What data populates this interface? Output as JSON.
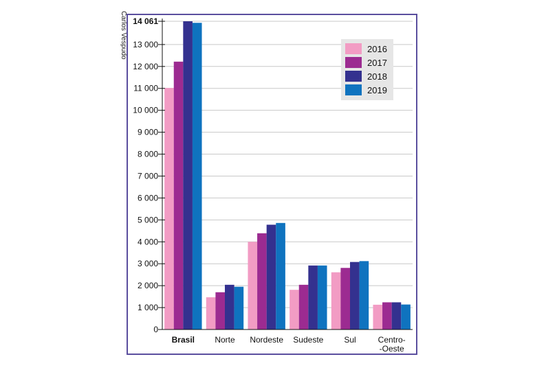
{
  "credit": "Carlos Vespudo",
  "chart_data": {
    "type": "bar",
    "title": "",
    "xlabel": "",
    "ylabel": "",
    "categories": [
      "Brasil",
      "Norte",
      "Nordeste",
      "Sudeste",
      "Sul",
      "Centro-Oeste"
    ],
    "category_lines": [
      [
        "Brasil"
      ],
      [
        "Norte"
      ],
      [
        "Nordeste"
      ],
      [
        "Sudeste"
      ],
      [
        "Sul"
      ],
      [
        "Centro-",
        "-Oeste"
      ]
    ],
    "bold_categories": [
      "Brasil"
    ],
    "series": [
      {
        "name": "2016",
        "color": "#f29cc4",
        "values": [
          11020,
          1470,
          4000,
          1810,
          2610,
          1130
        ]
      },
      {
        "name": "2017",
        "color": "#9c2b91",
        "values": [
          12220,
          1700,
          4390,
          2040,
          2810,
          1240
        ]
      },
      {
        "name": "2018",
        "color": "#34318f",
        "values": [
          14061,
          2040,
          4780,
          2920,
          3080,
          1240
        ]
      },
      {
        "name": "2019",
        "color": "#0f73bf",
        "values": [
          13990,
          1950,
          4860,
          2920,
          3120,
          1140
        ]
      }
    ],
    "ylim": [
      0,
      14061
    ],
    "yticks": [
      0,
      1000,
      2000,
      3000,
      4000,
      5000,
      6000,
      7000,
      8000,
      9000,
      10000,
      11000,
      12000,
      13000,
      14061
    ],
    "ytick_labels": [
      "0",
      "1 000",
      "2 000",
      "3 000",
      "4 000",
      "5 000",
      "6 000",
      "7 000",
      "8 000",
      "9 000",
      "10 000",
      "11 000",
      "12 000",
      "13 000",
      "14 061"
    ],
    "bold_ytick_labels": [
      "14 061"
    ],
    "legend_position": "top-right",
    "grid": true
  }
}
